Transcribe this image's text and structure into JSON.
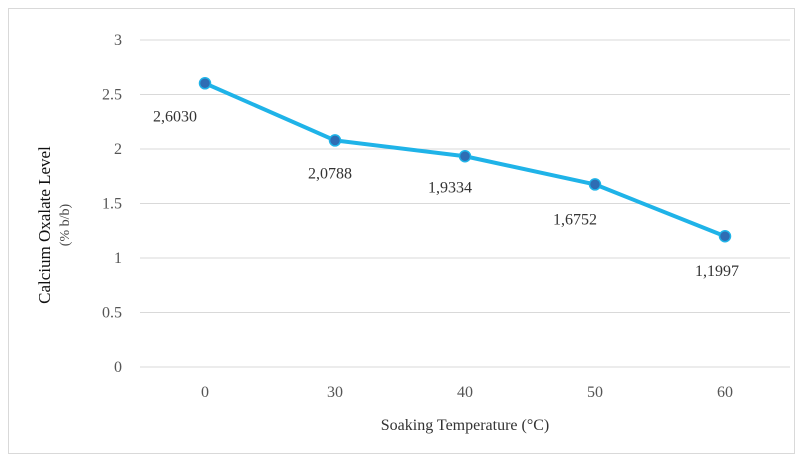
{
  "chart_data": {
    "type": "line",
    "categories": [
      "0",
      "30",
      "40",
      "50",
      "60"
    ],
    "series": [
      {
        "values": [
          2.603,
          2.0788,
          1.9334,
          1.6752,
          1.1997
        ],
        "labels": [
          "2,6030",
          "2,0788",
          "1,9334",
          "1,6752",
          "1,1997"
        ],
        "color": "#1fb3e8",
        "marker_color": "#2e6db4"
      }
    ],
    "xlabel": "Soaking Temperature (°C)",
    "ylabel": "Calcium Oxalate Level",
    "ylabel_unit": "(% b/b)",
    "ylim": [
      0,
      3
    ],
    "yticks": [
      "0",
      "0.5",
      "1",
      "1.5",
      "2",
      "2.5",
      "3"
    ],
    "grid": true,
    "gridline_color": "#d9d9d9"
  }
}
